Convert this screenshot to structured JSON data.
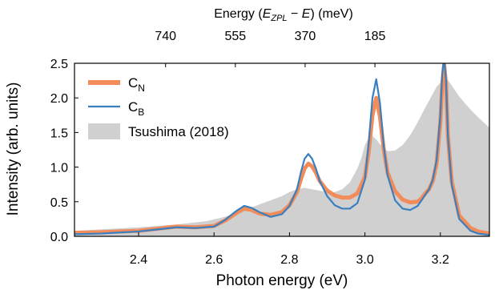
{
  "chart_data": {
    "type": "line",
    "xlabel": "Photon energy (eV)",
    "ylabel": "Intensity (arb. units)",
    "top_axis": {
      "label_prefix": "Energy (",
      "label_e": "E",
      "label_sub": "ZPL",
      "label_minus": " − ",
      "label_e2": "E",
      "label_suffix": ") (meV)",
      "e_zpl_eV": 3.2115,
      "ticks": [
        {
          "value": 740,
          "label": "740"
        },
        {
          "value": 555,
          "label": "555"
        },
        {
          "value": 370,
          "label": "370"
        },
        {
          "value": 185,
          "label": "185"
        }
      ]
    },
    "xlim": [
      2.23,
      3.33
    ],
    "ylim": [
      0.0,
      2.5
    ],
    "xticks": [
      {
        "value": 2.4,
        "label": "2.4"
      },
      {
        "value": 2.6,
        "label": "2.6"
      },
      {
        "value": 2.8,
        "label": "2.8"
      },
      {
        "value": 3.0,
        "label": "3.0"
      },
      {
        "value": 3.2,
        "label": "3.2"
      }
    ],
    "yticks": [
      {
        "value": 0.0,
        "label": "0.0"
      },
      {
        "value": 0.5,
        "label": "0.5"
      },
      {
        "value": 1.0,
        "label": "1.0"
      },
      {
        "value": 1.5,
        "label": "1.5"
      },
      {
        "value": 2.0,
        "label": "2.0"
      },
      {
        "value": 2.5,
        "label": "2.5"
      }
    ],
    "grid": false,
    "legend_position": "top-left",
    "series": [
      {
        "name": "Tsushima (2018)",
        "style": "area",
        "color": "#d0d0d0",
        "x": [
          2.23,
          2.3,
          2.4,
          2.5,
          2.58,
          2.62,
          2.66,
          2.7,
          2.74,
          2.78,
          2.8,
          2.82,
          2.84,
          2.86,
          2.88,
          2.9,
          2.92,
          2.94,
          2.96,
          2.98,
          2.99,
          3.0,
          3.01,
          3.02,
          3.03,
          3.04,
          3.06,
          3.08,
          3.1,
          3.12,
          3.14,
          3.16,
          3.18,
          3.19,
          3.2,
          3.21,
          3.22,
          3.23,
          3.25,
          3.28,
          3.3,
          3.33
        ],
        "y": [
          0.08,
          0.1,
          0.13,
          0.17,
          0.22,
          0.27,
          0.33,
          0.42,
          0.5,
          0.58,
          0.64,
          0.68,
          0.7,
          0.68,
          0.66,
          0.64,
          0.64,
          0.68,
          0.78,
          0.98,
          1.12,
          1.32,
          1.42,
          1.45,
          1.4,
          1.33,
          1.23,
          1.24,
          1.32,
          1.46,
          1.65,
          1.86,
          2.06,
          2.16,
          2.22,
          2.28,
          2.26,
          2.18,
          2.02,
          1.83,
          1.72,
          1.57
        ]
      },
      {
        "name": "C_N",
        "name_main": "C",
        "name_sub": "N",
        "style": "line",
        "color": "#f28c5a",
        "x": [
          2.23,
          2.3,
          2.4,
          2.45,
          2.5,
          2.55,
          2.6,
          2.63,
          2.66,
          2.68,
          2.7,
          2.72,
          2.75,
          2.78,
          2.8,
          2.82,
          2.83,
          2.84,
          2.85,
          2.86,
          2.87,
          2.88,
          2.9,
          2.92,
          2.94,
          2.96,
          2.98,
          3.0,
          3.01,
          3.02,
          3.03,
          3.04,
          3.05,
          3.06,
          3.08,
          3.1,
          3.12,
          3.14,
          3.15,
          3.16,
          3.17,
          3.18,
          3.19,
          3.2,
          3.205,
          3.21,
          3.215,
          3.22,
          3.23,
          3.25,
          3.28,
          3.3,
          3.33
        ],
        "y": [
          0.05,
          0.06,
          0.08,
          0.11,
          0.14,
          0.13,
          0.15,
          0.23,
          0.34,
          0.4,
          0.38,
          0.33,
          0.31,
          0.35,
          0.45,
          0.64,
          0.82,
          0.98,
          1.05,
          1.01,
          0.92,
          0.8,
          0.66,
          0.59,
          0.56,
          0.56,
          0.62,
          0.86,
          1.22,
          1.75,
          2.0,
          1.72,
          1.25,
          0.92,
          0.65,
          0.53,
          0.49,
          0.5,
          0.55,
          0.62,
          0.68,
          0.8,
          1.05,
          1.65,
          2.2,
          2.48,
          2.2,
          1.45,
          0.8,
          0.3,
          0.12,
          0.07,
          0.04
        ]
      },
      {
        "name": "C_B",
        "name_main": "C",
        "name_sub": "B",
        "style": "line",
        "color": "#3a7fbf",
        "x": [
          2.23,
          2.3,
          2.4,
          2.45,
          2.5,
          2.55,
          2.6,
          2.63,
          2.66,
          2.68,
          2.7,
          2.72,
          2.75,
          2.78,
          2.8,
          2.82,
          2.83,
          2.84,
          2.85,
          2.86,
          2.87,
          2.88,
          2.9,
          2.92,
          2.94,
          2.96,
          2.98,
          3.0,
          3.01,
          3.02,
          3.03,
          3.04,
          3.05,
          3.06,
          3.08,
          3.1,
          3.12,
          3.14,
          3.15,
          3.16,
          3.17,
          3.18,
          3.19,
          3.2,
          3.205,
          3.21,
          3.215,
          3.22,
          3.23,
          3.25,
          3.28,
          3.3,
          3.33
        ],
        "y": [
          0.03,
          0.04,
          0.07,
          0.1,
          0.13,
          0.12,
          0.14,
          0.24,
          0.37,
          0.44,
          0.41,
          0.35,
          0.28,
          0.32,
          0.44,
          0.68,
          0.92,
          1.12,
          1.19,
          1.12,
          0.98,
          0.8,
          0.58,
          0.45,
          0.4,
          0.4,
          0.48,
          0.82,
          1.35,
          2.0,
          2.27,
          1.92,
          1.3,
          0.88,
          0.52,
          0.4,
          0.38,
          0.44,
          0.52,
          0.6,
          0.68,
          0.82,
          1.1,
          1.75,
          2.35,
          2.58,
          2.25,
          1.45,
          0.75,
          0.25,
          0.08,
          0.04,
          0.02
        ]
      }
    ]
  }
}
